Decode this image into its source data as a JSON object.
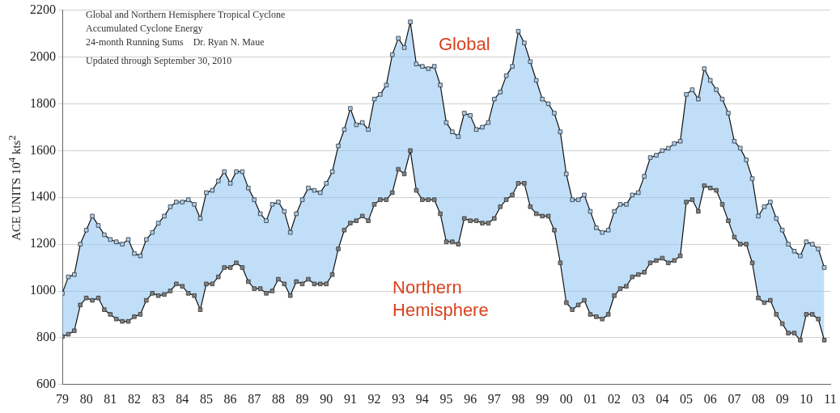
{
  "chart_data": {
    "type": "line",
    "title": "Global and Northern Hemisphere Tropical Cyclone Accumulated Cyclone Energy",
    "subtitle": "24-month Running Sums    Dr. Ryan N. Maue",
    "annotations": [
      "Updated through September 30, 2010"
    ],
    "ylabel": "ACE UNITS 10$^{4}$ kts$^{2}$",
    "x": [
      1979,
      1979.25,
      1979.5,
      1979.75,
      1980,
      1980.25,
      1980.5,
      1980.75,
      1981,
      1981.25,
      1981.5,
      1981.75,
      1982,
      1982.25,
      1982.5,
      1982.75,
      1983,
      1983.25,
      1983.5,
      1983.75,
      1984,
      1984.25,
      1984.5,
      1984.75,
      1985,
      1985.25,
      1985.5,
      1985.75,
      1986,
      1986.25,
      1986.5,
      1986.75,
      1987,
      1987.25,
      1987.5,
      1987.75,
      1988,
      1988.25,
      1988.5,
      1988.75,
      1989,
      1989.25,
      1989.5,
      1989.75,
      1990,
      1990.25,
      1990.5,
      1990.75,
      1991,
      1991.25,
      1991.5,
      1991.75,
      1992,
      1992.25,
      1992.5,
      1992.75,
      1993,
      1993.25,
      1993.5,
      1993.75,
      1994,
      1994.25,
      1994.5,
      1994.75,
      1995,
      1995.25,
      1995.5,
      1995.75,
      1996,
      1996.25,
      1996.5,
      1996.75,
      1997,
      1997.25,
      1997.5,
      1997.75,
      1998,
      1998.25,
      1998.5,
      1998.75,
      1999,
      1999.25,
      1999.5,
      1999.75,
      2000,
      2000.25,
      2000.5,
      2000.75,
      2001,
      2001.25,
      2001.5,
      2001.75,
      2002,
      2002.25,
      2002.5,
      2002.75,
      2003,
      2003.25,
      2003.5,
      2003.75,
      2004,
      2004.25,
      2004.5,
      2004.75,
      2005,
      2005.25,
      2005.5,
      2005.75,
      2006,
      2006.25,
      2006.5,
      2006.75,
      2007,
      2007.25,
      2007.5,
      2007.75,
      2008,
      2008.25,
      2008.5,
      2008.75,
      2009,
      2009.25,
      2009.5,
      2009.75,
      2010,
      2010.25,
      2010.5,
      2010.75
    ],
    "series": [
      {
        "name": "Global",
        "color": "#a9cdef",
        "lower": [
          805,
          815,
          830,
          940,
          970,
          960,
          970,
          920,
          900,
          880,
          870,
          870,
          890,
          900,
          960,
          990,
          980,
          985,
          1000,
          1030,
          1020,
          990,
          980,
          920,
          1030,
          1030,
          1060,
          1100,
          1100,
          1120,
          1100,
          1040,
          1010,
          1010,
          990,
          1000,
          1050,
          1030,
          980,
          1040,
          1030,
          1050,
          1030,
          1030,
          1030,
          1070,
          1180,
          1260,
          1290,
          1300,
          1320,
          1300,
          1370,
          1390,
          1390,
          1420,
          1520,
          1500,
          1600,
          1430,
          1390,
          1390,
          1390,
          1330,
          1210,
          1210,
          1200,
          1310,
          1300,
          1300,
          1290,
          1290,
          1310,
          1360,
          1390,
          1410,
          1460,
          1460,
          1360,
          1330,
          1320,
          1320,
          1260,
          1120,
          950,
          920,
          940,
          960,
          900,
          890,
          880,
          900,
          980,
          1010,
          1020,
          1060,
          1070,
          1080,
          1120,
          1130,
          1140,
          1120,
          1130,
          1150,
          1380,
          1390,
          1340,
          1450,
          1440,
          1430,
          1370,
          1300,
          1230,
          1200,
          1200,
          1120,
          970,
          950,
          960,
          900,
          860,
          820,
          820,
          790,
          900,
          900,
          880,
          790
        ],
        "upper": [
          990,
          1060,
          1070,
          1200,
          1260,
          1320,
          1280,
          1240,
          1220,
          1210,
          1200,
          1220,
          1160,
          1150,
          1220,
          1250,
          1290,
          1320,
          1360,
          1380,
          1380,
          1390,
          1370,
          1310,
          1420,
          1430,
          1470,
          1510,
          1460,
          1510,
          1510,
          1440,
          1390,
          1330,
          1300,
          1370,
          1380,
          1340,
          1250,
          1330,
          1390,
          1440,
          1430,
          1420,
          1460,
          1510,
          1620,
          1690,
          1780,
          1710,
          1720,
          1690,
          1820,
          1840,
          1880,
          2010,
          2080,
          2040,
          2150,
          1970,
          1960,
          1950,
          1960,
          1880,
          1720,
          1680,
          1660,
          1760,
          1750,
          1690,
          1700,
          1720,
          1820,
          1850,
          1920,
          1960,
          2110,
          2060,
          1980,
          1900,
          1820,
          1800,
          1760,
          1680,
          1500,
          1390,
          1390,
          1410,
          1340,
          1270,
          1250,
          1260,
          1340,
          1370,
          1370,
          1410,
          1420,
          1490,
          1570,
          1580,
          1600,
          1610,
          1630,
          1640,
          1840,
          1860,
          1820,
          1950,
          1900,
          1860,
          1820,
          1760,
          1640,
          1610,
          1560,
          1480,
          1320,
          1360,
          1380,
          1310,
          1260,
          1200,
          1170,
          1150,
          1210,
          1200,
          1180,
          1100
        ],
        "values": [
          990,
          1060,
          1070,
          1200,
          1260,
          1320,
          1280,
          1240,
          1220,
          1210,
          1200,
          1220,
          1160,
          1150,
          1220,
          1250,
          1290,
          1320,
          1360,
          1380,
          1380,
          1390,
          1370,
          1310,
          1420,
          1430,
          1470,
          1510,
          1460,
          1510,
          1510,
          1440,
          1390,
          1330,
          1300,
          1370,
          1380,
          1340,
          1250,
          1330,
          1390,
          1440,
          1430,
          1420,
          1460,
          1510,
          1620,
          1690,
          1780,
          1710,
          1720,
          1690,
          1820,
          1840,
          1880,
          2010,
          2080,
          2040,
          2150,
          1970,
          1960,
          1950,
          1960,
          1880,
          1720,
          1680,
          1660,
          1760,
          1750,
          1690,
          1700,
          1720,
          1820,
          1850,
          1920,
          1960,
          2110,
          2060,
          1980,
          1900,
          1820,
          1800,
          1760,
          1680,
          1500,
          1390,
          1390,
          1410,
          1340,
          1270,
          1250,
          1260,
          1340,
          1370,
          1370,
          1410,
          1420,
          1490,
          1570,
          1580,
          1600,
          1610,
          1630,
          1640,
          1840,
          1860,
          1820,
          1950,
          1900,
          1860,
          1820,
          1760,
          1640,
          1610,
          1560,
          1480,
          1320,
          1360,
          1380,
          1310,
          1260,
          1200,
          1170,
          1150,
          1210,
          1200,
          1180,
          1100
        ]
      },
      {
        "name": "Northern Hemisphere",
        "color": "#808080",
        "values": [
          805,
          815,
          830,
          940,
          970,
          960,
          970,
          920,
          900,
          880,
          870,
          870,
          890,
          900,
          960,
          990,
          980,
          985,
          1000,
          1030,
          1020,
          990,
          980,
          920,
          1030,
          1030,
          1060,
          1100,
          1100,
          1120,
          1100,
          1040,
          1010,
          1010,
          990,
          1000,
          1050,
          1030,
          980,
          1040,
          1030,
          1050,
          1030,
          1030,
          1030,
          1070,
          1180,
          1260,
          1290,
          1300,
          1320,
          1300,
          1370,
          1390,
          1390,
          1420,
          1520,
          1500,
          1600,
          1430,
          1390,
          1390,
          1390,
          1330,
          1210,
          1210,
          1200,
          1310,
          1300,
          1300,
          1290,
          1290,
          1310,
          1360,
          1390,
          1410,
          1460,
          1460,
          1360,
          1330,
          1320,
          1320,
          1260,
          1120,
          950,
          920,
          940,
          960,
          900,
          890,
          880,
          900,
          980,
          1010,
          1020,
          1060,
          1070,
          1080,
          1120,
          1130,
          1140,
          1120,
          1130,
          1150,
          1380,
          1390,
          1340,
          1450,
          1440,
          1430,
          1370,
          1300,
          1230,
          1200,
          1200,
          1120,
          970,
          950,
          960,
          900,
          860,
          820,
          820,
          790,
          900,
          900,
          880,
          790
        ]
      }
    ],
    "xlim": [
      1979,
      2011
    ],
    "xticks": [
      {
        "value": 1979,
        "label": "79"
      },
      {
        "value": 1980,
        "label": "80"
      },
      {
        "value": 1981,
        "label": "81"
      },
      {
        "value": 1982,
        "label": "82"
      },
      {
        "value": 1983,
        "label": "83"
      },
      {
        "value": 1984,
        "label": "84"
      },
      {
        "value": 1985,
        "label": "85"
      },
      {
        "value": 1986,
        "label": "86"
      },
      {
        "value": 1987,
        "label": "87"
      },
      {
        "value": 1988,
        "label": "88"
      },
      {
        "value": 1989,
        "label": "89"
      },
      {
        "value": 1990,
        "label": "90"
      },
      {
        "value": 1991,
        "label": "91"
      },
      {
        "value": 1992,
        "label": "92"
      },
      {
        "value": 1993,
        "label": "93"
      },
      {
        "value": 1994,
        "label": "94"
      },
      {
        "value": 1995,
        "label": "95"
      },
      {
        "value": 1996,
        "label": "96"
      },
      {
        "value": 1997,
        "label": "97"
      },
      {
        "value": 1998,
        "label": "98"
      },
      {
        "value": 1999,
        "label": "99"
      },
      {
        "value": 2000,
        "label": "00"
      },
      {
        "value": 2001,
        "label": "01"
      },
      {
        "value": 2002,
        "label": "02"
      },
      {
        "value": 2003,
        "label": "03"
      },
      {
        "value": 2004,
        "label": "04"
      },
      {
        "value": 2005,
        "label": "05"
      },
      {
        "value": 2006,
        "label": "06"
      },
      {
        "value": 2007,
        "label": "07"
      },
      {
        "value": 2008,
        "label": "08"
      },
      {
        "value": 2009,
        "label": "09"
      },
      {
        "value": 2010,
        "label": "10"
      },
      {
        "value": 2011,
        "label": "11"
      }
    ],
    "ylim": [
      600,
      2200
    ],
    "yticks": [
      600,
      800,
      1000,
      1200,
      1400,
      1600,
      1800,
      2000,
      2200
    ],
    "grid": "y",
    "legend": false,
    "marker": "square",
    "line_style": "solid"
  }
}
